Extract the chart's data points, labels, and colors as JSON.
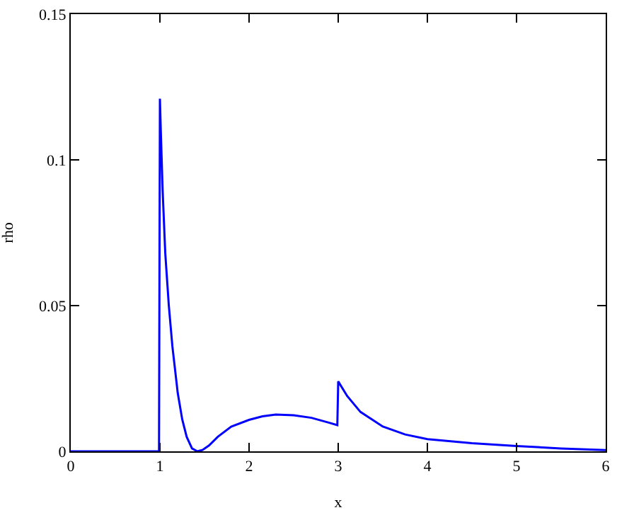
{
  "chart_data": {
    "type": "line",
    "xlabel": "x",
    "ylabel": "rho",
    "xlim": [
      0,
      6
    ],
    "ylim": [
      0,
      0.15
    ],
    "xticks": [
      0,
      1,
      2,
      3,
      4,
      5,
      6
    ],
    "yticks": [
      0,
      0.05,
      0.1,
      0.15
    ],
    "legend": false,
    "marker": "none",
    "line_style": "solid",
    "series": [
      {
        "color": "#0000ff",
        "x": [
          0,
          0.5,
          0.99,
          1.0,
          1.01,
          1.03,
          1.06,
          1.1,
          1.14,
          1.2,
          1.25,
          1.3,
          1.36,
          1.42,
          1.48,
          1.55,
          1.65,
          1.8,
          2.0,
          2.15,
          2.3,
          2.5,
          2.7,
          2.9,
          2.99,
          3.0,
          3.1,
          3.25,
          3.5,
          3.75,
          4.0,
          4.5,
          5.0,
          5.5,
          6.0
        ],
        "values": [
          0,
          0,
          0,
          0.121,
          0.11,
          0.09,
          0.068,
          0.05,
          0.036,
          0.02,
          0.011,
          0.005,
          0.001,
          0,
          0.0005,
          0.002,
          0.005,
          0.0085,
          0.0108,
          0.012,
          0.0126,
          0.0124,
          0.0115,
          0.0098,
          0.009,
          0.024,
          0.019,
          0.0135,
          0.0085,
          0.0058,
          0.0042,
          0.0028,
          0.0018,
          0.001,
          0.0004
        ]
      }
    ]
  }
}
